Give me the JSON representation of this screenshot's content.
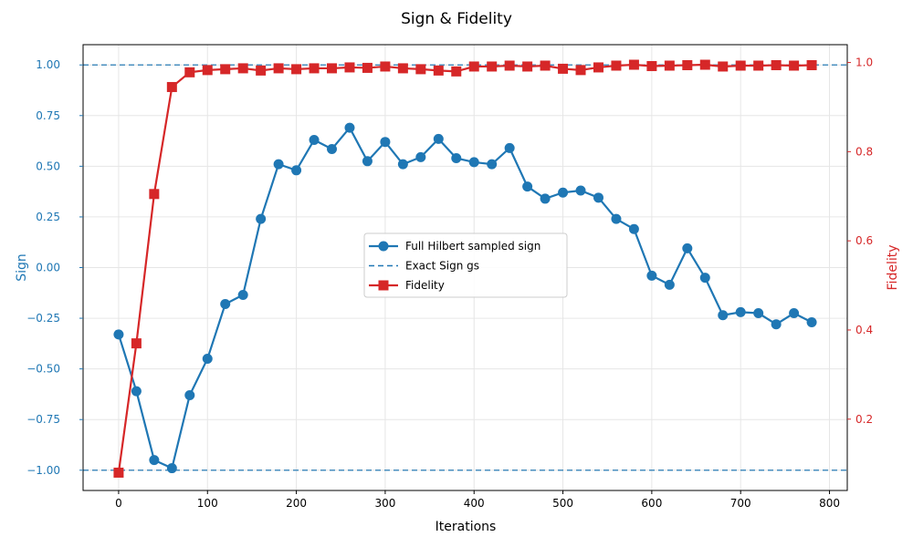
{
  "chart_data": {
    "type": "line",
    "title": "Sign & Fidelity",
    "xlabel": "Iterations",
    "ylabel_left": "Sign",
    "ylabel_right": "Fidelity",
    "xlim": [
      -40,
      820
    ],
    "ylim_left": [
      -1.1,
      1.1
    ],
    "ylim_right": [
      0.04,
      1.04
    ],
    "x_ticks": [
      0,
      100,
      200,
      300,
      400,
      500,
      600,
      700,
      800
    ],
    "y_left_ticks": [
      -1.0,
      -0.75,
      -0.5,
      -0.25,
      0.0,
      0.25,
      0.5,
      0.75,
      1.0
    ],
    "y_left_tick_labels": [
      "−1.00",
      "−0.75",
      "−0.50",
      "−0.25",
      "0.00",
      "0.25",
      "0.50",
      "0.75",
      "1.00"
    ],
    "y_right_ticks": [
      0.2,
      0.4,
      0.6,
      0.8,
      1.0
    ],
    "y_right_tick_labels": [
      "0.2",
      "0.4",
      "0.6",
      "0.8",
      "1.0"
    ],
    "grid": true,
    "legend_position": "center",
    "x": [
      0,
      20,
      40,
      60,
      80,
      100,
      120,
      140,
      160,
      180,
      200,
      220,
      240,
      260,
      280,
      300,
      320,
      340,
      360,
      380,
      400,
      420,
      440,
      460,
      480,
      500,
      520,
      540,
      560,
      580,
      600,
      620,
      640,
      660,
      680,
      700,
      720,
      740,
      760,
      780
    ],
    "series": [
      {
        "name": "Full Hilbert sampled sign",
        "axis": "left",
        "color": "#1f77b4",
        "marker": "circle",
        "values": [
          -0.33,
          -0.61,
          -0.95,
          -0.99,
          -0.63,
          -0.45,
          -0.18,
          -0.135,
          0.24,
          0.51,
          0.48,
          0.63,
          0.585,
          0.69,
          0.525,
          0.62,
          0.51,
          0.545,
          0.635,
          0.54,
          0.52,
          0.51,
          0.59,
          0.4,
          0.34,
          0.37,
          0.38,
          0.345,
          0.24,
          0.19,
          -0.04,
          -0.085,
          0.095,
          -0.05,
          -0.235,
          -0.22,
          -0.225,
          -0.28,
          -0.225,
          -0.27
        ]
      },
      {
        "name": "Fidelity",
        "axis": "right",
        "color": "#d62728",
        "marker": "square",
        "values": [
          0.08,
          0.37,
          0.705,
          0.945,
          0.978,
          0.983,
          0.985,
          0.987,
          0.982,
          0.987,
          0.985,
          0.987,
          0.987,
          0.989,
          0.988,
          0.991,
          0.987,
          0.985,
          0.982,
          0.98,
          0.991,
          0.991,
          0.993,
          0.991,
          0.993,
          0.986,
          0.983,
          0.989,
          0.993,
          0.995,
          0.992,
          0.993,
          0.994,
          0.995,
          0.991,
          0.993,
          0.993,
          0.994,
          0.993,
          0.994
        ]
      }
    ],
    "reference_lines": [
      {
        "name": "Exact Sign gs",
        "axis": "left",
        "values": [
          1.0,
          -1.0
        ],
        "color": "#1f77b4",
        "style": "dashed"
      }
    ],
    "legend": [
      {
        "label": "Full Hilbert sampled sign",
        "color": "#1f77b4",
        "marker": "circle",
        "style": "solid"
      },
      {
        "label": "Exact Sign gs",
        "color": "#1f77b4",
        "marker": "none",
        "style": "dashed"
      },
      {
        "label": "Fidelity",
        "color": "#d62728",
        "marker": "square",
        "style": "solid"
      }
    ],
    "colors": {
      "left_axis": "#1f77b4",
      "right_axis": "#d62728",
      "grid": "#e6e6e6"
    }
  }
}
